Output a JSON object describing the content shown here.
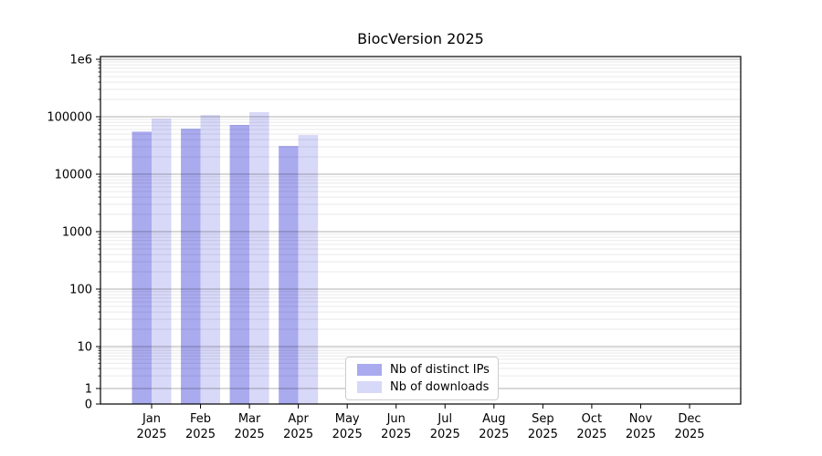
{
  "chart_data": {
    "type": "bar",
    "title": "BiocVersion 2025",
    "categories": [
      "Jan 2025",
      "Feb 2025",
      "Mar 2025",
      "Apr 2025",
      "May 2025",
      "Jun 2025",
      "Jul 2025",
      "Aug 2025",
      "Sep 2025",
      "Oct 2025",
      "Nov 2025",
      "Dec 2025"
    ],
    "series": [
      {
        "name": "Nb of distinct IPs",
        "color": "#aaaaef",
        "values": [
          55000,
          62000,
          72000,
          31000,
          null,
          null,
          null,
          null,
          null,
          null,
          null,
          null
        ]
      },
      {
        "name": "Nb of downloads",
        "color": "#d8d8f8",
        "values": [
          93000,
          107000,
          120000,
          48000,
          null,
          null,
          null,
          null,
          null,
          null,
          null,
          null
        ]
      }
    ],
    "yscale": "symlog",
    "ylim": [
      0,
      1000000
    ],
    "yticks": [
      {
        "label": "0",
        "value": 0
      },
      {
        "label": "1",
        "value": 1
      },
      {
        "label": "10",
        "value": 10
      },
      {
        "label": "100",
        "value": 100
      },
      {
        "label": "1000",
        "value": 1000
      },
      {
        "label": "10000",
        "value": 10000
      },
      {
        "label": "100000",
        "value": 100000
      },
      {
        "label": "1e6",
        "value": 1000000
      }
    ],
    "grid": "horizontal major+minor",
    "legend_position": "lower center"
  },
  "colors": {
    "axis": "#000000",
    "major_grid": "#b0b0b0",
    "minor_grid": "#ebebeb",
    "background": "#ffffff"
  }
}
